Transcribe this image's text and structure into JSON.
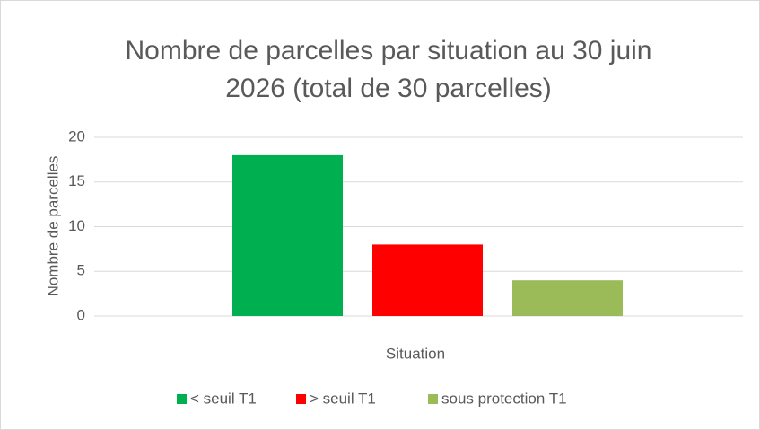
{
  "chart_data": {
    "type": "bar",
    "title": "Nombre de parcelles par situation au 30 juin 2026 (total de 30 parcelles)",
    "x_label": "Situation",
    "y_label": "Nombre de parcelles",
    "categories": [
      null
    ],
    "series": [
      {
        "name": "< seuil T1",
        "color": "#00b050",
        "values": [
          18
        ]
      },
      {
        "name": "> seuil T1",
        "color": "#ff0000",
        "values": [
          8
        ]
      },
      {
        "name": "sous protection T1",
        "color": "#9bbb59",
        "values": [
          4
        ]
      }
    ],
    "ylim": [
      0,
      20
    ],
    "yticks": [
      0,
      5,
      10,
      15,
      20
    ],
    "grid": true,
    "legend": "bottom"
  }
}
